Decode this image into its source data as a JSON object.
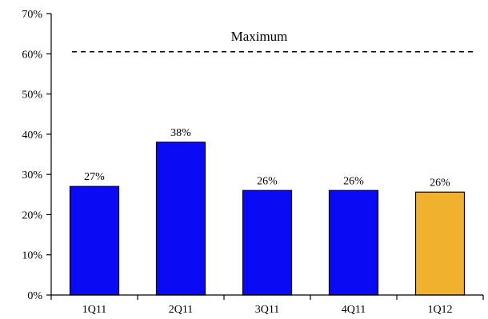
{
  "chart_data": {
    "type": "bar",
    "categories": [
      "1Q11",
      "2Q11",
      "3Q11",
      "4Q11",
      "1Q12"
    ],
    "values": [
      27,
      38,
      26,
      26,
      25.6
    ],
    "data_labels": [
      "27%",
      "38%",
      "26%",
      "26%",
      "26%"
    ],
    "bar_colors": [
      "#0a0af5",
      "#0a0af5",
      "#0a0af5",
      "#0a0af5",
      "#f0b12e"
    ],
    "ylim": [
      0,
      70
    ],
    "yticks": [
      0,
      10,
      20,
      30,
      40,
      50,
      60,
      70
    ],
    "ytick_labels": [
      "0%",
      "10%",
      "20%",
      "30%",
      "40%",
      "50%",
      "60%",
      "70%"
    ],
    "grid": false,
    "title": "",
    "xlabel": "",
    "ylabel": "",
    "reference_line": {
      "label": "Maximum",
      "value": 60.5,
      "style": "dashed"
    }
  }
}
